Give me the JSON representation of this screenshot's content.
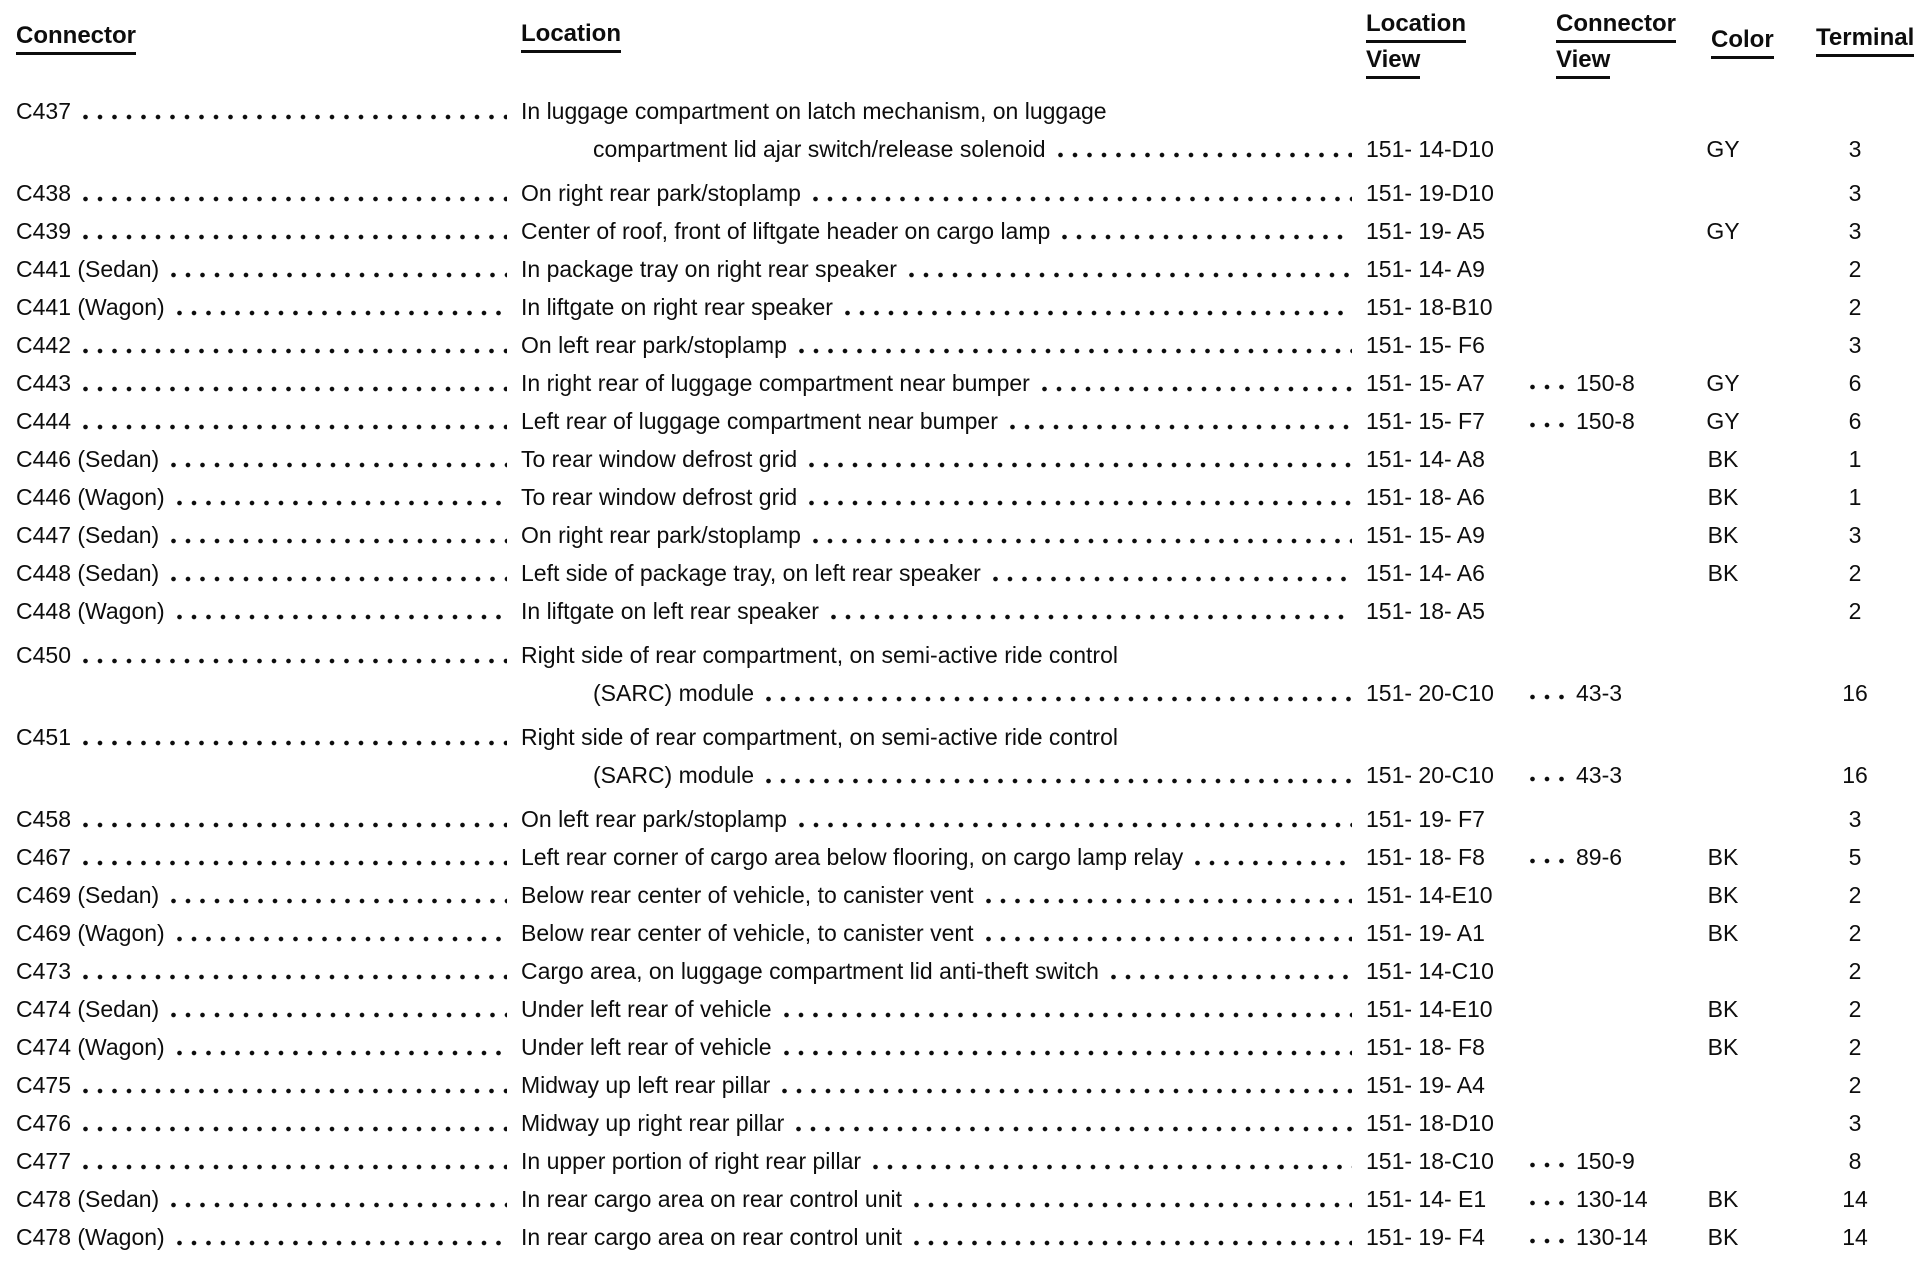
{
  "document": {
    "type": "connector-location-table",
    "text_color": "#0d0d0d",
    "background_color": "#ffffff"
  },
  "table": {
    "headers": {
      "connector": "Connector",
      "location": "Location",
      "location_view_line1": "Location",
      "location_view_line2": "View",
      "connector_view_line1": "Connector",
      "connector_view_line2": "View",
      "color": "Color",
      "terminal": "Terminal"
    },
    "rows": [
      {
        "connector": "C437",
        "location_lines": [
          "In luggage compartment on latch mechanism, on luggage",
          "compartment lid ajar switch/release solenoid"
        ],
        "location_view": "151- 14-D10",
        "connector_view": "",
        "color": "GY",
        "terminal": "3"
      },
      {
        "connector": "C438",
        "location_lines": [
          "On right rear park/stoplamp"
        ],
        "location_view": "151- 19-D10",
        "connector_view": "",
        "color": "",
        "terminal": "3"
      },
      {
        "connector": "C439",
        "location_lines": [
          "Center of roof, front of liftgate header on cargo lamp"
        ],
        "location_view": "151- 19- A5",
        "connector_view": "",
        "color": "GY",
        "terminal": "3"
      },
      {
        "connector": "C441 (Sedan)",
        "location_lines": [
          "In package tray on right rear speaker"
        ],
        "location_view": "151- 14- A9",
        "connector_view": "",
        "color": "",
        "terminal": "2"
      },
      {
        "connector": "C441 (Wagon)",
        "location_lines": [
          "In liftgate on right rear speaker"
        ],
        "location_view": "151- 18-B10",
        "connector_view": "",
        "color": "",
        "terminal": "2"
      },
      {
        "connector": "C442",
        "location_lines": [
          "On left rear park/stoplamp"
        ],
        "location_view": "151- 15- F6",
        "connector_view": "",
        "color": "",
        "terminal": "3"
      },
      {
        "connector": "C443",
        "location_lines": [
          "In right rear of luggage compartment near bumper"
        ],
        "location_view": "151- 15- A7",
        "connector_view": "150-8",
        "color": "GY",
        "terminal": "6"
      },
      {
        "connector": "C444",
        "location_lines": [
          "Left rear of luggage compartment near bumper"
        ],
        "location_view": "151- 15- F7",
        "connector_view": "150-8",
        "color": "GY",
        "terminal": "6"
      },
      {
        "connector": "C446 (Sedan)",
        "location_lines": [
          "To rear window defrost grid"
        ],
        "location_view": "151- 14- A8",
        "connector_view": "",
        "color": "BK",
        "terminal": "1"
      },
      {
        "connector": "C446 (Wagon)",
        "location_lines": [
          "To rear window defrost grid"
        ],
        "location_view": "151- 18- A6",
        "connector_view": "",
        "color": "BK",
        "terminal": "1"
      },
      {
        "connector": "C447 (Sedan)",
        "location_lines": [
          "On right rear park/stoplamp"
        ],
        "location_view": "151- 15- A9",
        "connector_view": "",
        "color": "BK",
        "terminal": "3"
      },
      {
        "connector": "C448 (Sedan)",
        "location_lines": [
          "Left side of package tray, on left rear speaker"
        ],
        "location_view": "151- 14- A6",
        "connector_view": "",
        "color": "BK",
        "terminal": "2"
      },
      {
        "connector": "C448 (Wagon)",
        "location_lines": [
          "In liftgate on left rear speaker"
        ],
        "location_view": "151- 18- A5",
        "connector_view": "",
        "color": "",
        "terminal": "2"
      },
      {
        "connector": "C450",
        "location_lines": [
          "Right side of rear compartment, on semi-active ride control",
          "(SARC) module"
        ],
        "location_view": "151- 20-C10",
        "connector_view": "43-3",
        "color": "",
        "terminal": "16"
      },
      {
        "connector": "C451",
        "location_lines": [
          "Right side of rear compartment, on semi-active ride control",
          "(SARC) module"
        ],
        "location_view": "151- 20-C10",
        "connector_view": "43-3",
        "color": "",
        "terminal": "16"
      },
      {
        "connector": "C458",
        "location_lines": [
          "On left rear park/stoplamp"
        ],
        "location_view": "151- 19- F7",
        "connector_view": "",
        "color": "",
        "terminal": "3"
      },
      {
        "connector": "C467",
        "location_lines": [
          "Left rear corner of cargo area below flooring, on cargo lamp relay"
        ],
        "location_view": "151- 18- F8",
        "connector_view": "89-6",
        "color": "BK",
        "terminal": "5"
      },
      {
        "connector": "C469 (Sedan)",
        "location_lines": [
          "Below rear center of vehicle, to canister vent"
        ],
        "location_view": "151- 14-E10",
        "connector_view": "",
        "color": "BK",
        "terminal": "2"
      },
      {
        "connector": "C469 (Wagon)",
        "location_lines": [
          "Below rear center of vehicle, to canister vent"
        ],
        "location_view": "151- 19- A1",
        "connector_view": "",
        "color": "BK",
        "terminal": "2"
      },
      {
        "connector": "C473",
        "location_lines": [
          "Cargo area, on luggage compartment lid anti-theft switch"
        ],
        "location_view": "151- 14-C10",
        "connector_view": "",
        "color": "",
        "terminal": "2"
      },
      {
        "connector": "C474 (Sedan)",
        "location_lines": [
          "Under left rear of vehicle"
        ],
        "location_view": "151- 14-E10",
        "connector_view": "",
        "color": "BK",
        "terminal": "2"
      },
      {
        "connector": "C474 (Wagon)",
        "location_lines": [
          "Under left rear of vehicle"
        ],
        "location_view": "151- 18- F8",
        "connector_view": "",
        "color": "BK",
        "terminal": "2"
      },
      {
        "connector": "C475",
        "location_lines": [
          "Midway up left rear pillar"
        ],
        "location_view": "151- 19- A4",
        "connector_view": "",
        "color": "",
        "terminal": "2"
      },
      {
        "connector": "C476",
        "location_lines": [
          "Midway up right rear pillar"
        ],
        "location_view": "151- 18-D10",
        "connector_view": "",
        "color": "",
        "terminal": "3"
      },
      {
        "connector": "C477",
        "location_lines": [
          "In upper portion of right rear pillar"
        ],
        "location_view": "151- 18-C10",
        "connector_view": "150-9",
        "color": "",
        "terminal": "8"
      },
      {
        "connector": "C478 (Sedan)",
        "location_lines": [
          "In rear cargo area on rear control unit"
        ],
        "location_view": "151- 14- E1",
        "connector_view": "130-14",
        "color": "BK",
        "terminal": "14"
      },
      {
        "connector": "C478 (Wagon)",
        "location_lines": [
          "In rear cargo area on rear control unit"
        ],
        "location_view": "151- 19- F4",
        "connector_view": "130-14",
        "color": "BK",
        "terminal": "14"
      }
    ]
  }
}
